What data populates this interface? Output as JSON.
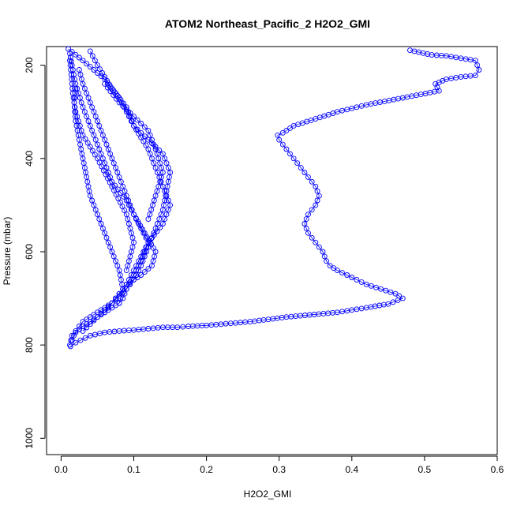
{
  "chart_data": {
    "type": "scatter",
    "title": "ATOM2 Northeast_Pacific_2 H2O2_GMI",
    "xlabel": "H2O2_GMI",
    "ylabel": "Pressure (mbar)",
    "xlim": [
      -0.02,
      0.6
    ],
    "ylim": [
      1035,
      160
    ],
    "y_reversed": true,
    "x_ticks": [
      0.0,
      0.1,
      0.2,
      0.3,
      0.4,
      0.5,
      0.6
    ],
    "x_tick_labels": [
      "0.0",
      "0.1",
      "0.2",
      "0.3",
      "0.4",
      "0.5",
      "0.6"
    ],
    "y_ticks": [
      200,
      400,
      600,
      800,
      1000
    ],
    "y_tick_labels": [
      "200",
      "400",
      "600",
      "800",
      "1000"
    ],
    "marker": "open-circle",
    "color": "#0000ff",
    "grid": false,
    "series": [
      {
        "x": [
          0.48,
          0.51,
          0.53,
          0.55,
          0.57,
          0.575,
          0.57,
          0.55,
          0.53,
          0.515,
          0.52,
          0.47,
          0.42,
          0.38,
          0.35,
          0.32,
          0.305,
          0.298,
          0.3,
          0.31,
          0.32,
          0.33,
          0.34,
          0.35,
          0.355,
          0.35,
          0.34,
          0.335,
          0.34,
          0.35,
          0.36,
          0.365,
          0.37,
          0.38,
          0.4,
          0.42,
          0.44,
          0.46,
          0.47,
          0.45,
          0.42,
          0.38,
          0.31,
          0.26,
          0.2,
          0.175,
          0.16,
          0.14,
          0.12,
          0.1,
          0.08,
          0.06,
          0.04,
          0.02,
          0.013
        ],
        "y": [
          168,
          178,
          180,
          185,
          190,
          210,
          222,
          225,
          230,
          240,
          255,
          270,
          285,
          300,
          315,
          330,
          345,
          350,
          360,
          380,
          400,
          420,
          440,
          460,
          480,
          500,
          520,
          540,
          560,
          580,
          600,
          620,
          630,
          640,
          655,
          670,
          680,
          690,
          700,
          712,
          720,
          730,
          740,
          750,
          758,
          760,
          762,
          762,
          765,
          768,
          770,
          773,
          780,
          795,
          803
        ]
      },
      {
        "x": [
          0.01,
          0.03,
          0.06,
          0.08,
          0.09,
          0.1,
          0.12,
          0.14,
          0.15,
          0.145,
          0.14,
          0.13,
          0.12,
          0.11,
          0.1,
          0.09,
          0.085,
          0.08,
          0.07,
          0.05,
          0.03,
          0.015,
          0.012
        ],
        "y": [
          165,
          190,
          230,
          270,
          300,
          330,
          360,
          390,
          430,
          470,
          510,
          550,
          590,
          630,
          660,
          680,
          700,
          710,
          720,
          740,
          760,
          780,
          800
        ]
      },
      {
        "x": [
          0.012,
          0.015,
          0.02,
          0.03,
          0.04,
          0.05,
          0.06,
          0.07,
          0.09,
          0.1,
          0.11,
          0.12,
          0.11,
          0.1,
          0.09,
          0.08,
          0.07,
          0.05,
          0.03,
          0.02,
          0.015
        ],
        "y": [
          175,
          200,
          240,
          290,
          330,
          370,
          410,
          450,
          490,
          520,
          550,
          580,
          610,
          640,
          670,
          690,
          710,
          730,
          750,
          770,
          790
        ]
      },
      {
        "x": [
          0.04,
          0.05,
          0.07,
          0.09,
          0.1,
          0.12,
          0.13,
          0.14,
          0.15,
          0.14,
          0.12,
          0.11,
          0.1,
          0.09,
          0.07,
          0.05,
          0.03
        ],
        "y": [
          170,
          200,
          250,
          290,
          330,
          380,
          420,
          460,
          500,
          540,
          580,
          620,
          650,
          680,
          710,
          740,
          770
        ]
      },
      {
        "x": [
          0.025,
          0.03,
          0.04,
          0.05,
          0.06,
          0.07,
          0.08,
          0.09,
          0.1,
          0.115,
          0.13,
          0.125,
          0.11,
          0.09,
          0.08,
          0.07,
          0.06
        ],
        "y": [
          210,
          240,
          280,
          320,
          360,
          400,
          440,
          480,
          520,
          560,
          600,
          630,
          650,
          670,
          690,
          710,
          730
        ]
      },
      {
        "x": [
          0.02,
          0.018,
          0.02,
          0.025,
          0.03,
          0.035,
          0.04,
          0.05,
          0.06,
          0.07,
          0.08,
          0.085,
          0.08
        ],
        "y": [
          250,
          280,
          320,
          360,
          400,
          440,
          480,
          520,
          560,
          600,
          640,
          680,
          710
        ]
      },
      {
        "x": [
          0.012,
          0.014,
          0.016,
          0.02,
          0.03,
          0.05,
          0.07,
          0.09,
          0.1,
          0.09
        ],
        "y": [
          190,
          220,
          260,
          300,
          350,
          400,
          460,
          520,
          580,
          640
        ]
      },
      {
        "x": [
          0.06,
          0.08,
          0.1,
          0.12,
          0.13,
          0.14,
          0.13,
          0.12
        ],
        "y": [
          240,
          280,
          310,
          340,
          380,
          430,
          480,
          530
        ]
      }
    ]
  }
}
